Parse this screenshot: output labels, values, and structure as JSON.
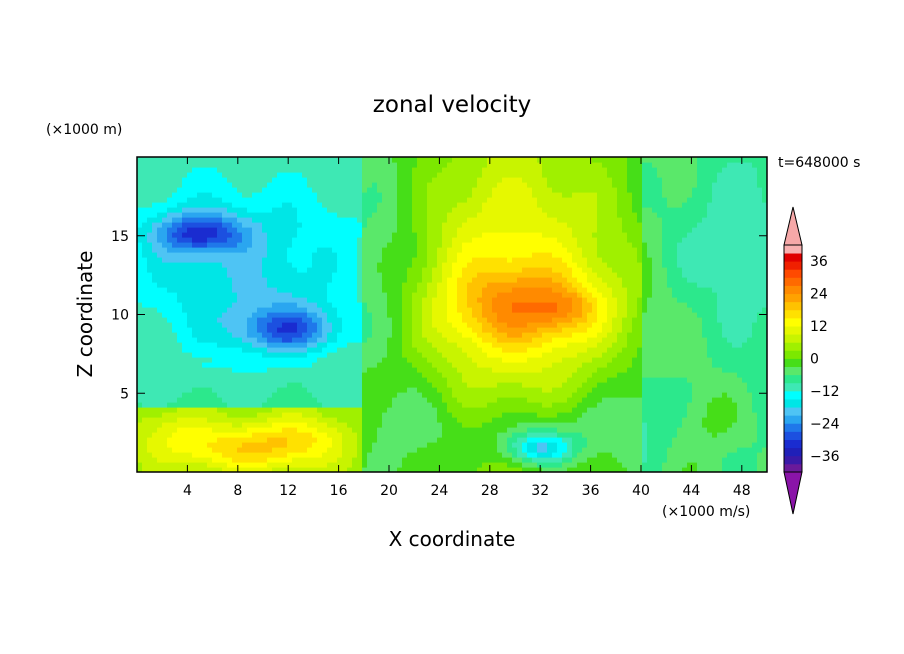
{
  "chart_data": {
    "type": "heatmap",
    "title": "zonal velocity",
    "time_label": "t=648000 s",
    "xlabel": "X coordinate",
    "ylabel": "Z coordinate",
    "x_unit": "(×1000 m/s)",
    "z_unit": "(×1000 m)",
    "xlim": [
      0,
      50
    ],
    "ylim": [
      0,
      20
    ],
    "x_ticks": [
      4,
      8,
      12,
      16,
      20,
      24,
      28,
      32,
      36,
      40,
      44,
      48
    ],
    "y_ticks": [
      5,
      10,
      15
    ],
    "colorbar": {
      "levels": [
        -42,
        -39,
        -36,
        -33,
        -30,
        -27,
        -24,
        -21,
        -18,
        -15,
        -12,
        -9,
        -6,
        -3,
        0,
        3,
        6,
        9,
        12,
        15,
        18,
        21,
        24,
        27,
        30,
        33,
        36,
        39,
        42
      ],
      "tick_labels": [
        36,
        24,
        12,
        0,
        -12,
        -24,
        -36
      ],
      "colors": [
        "#6a1a9a",
        "#3a1aa8",
        "#2020b8",
        "#1a2cd0",
        "#1c50e0",
        "#1f78ea",
        "#2aa6f0",
        "#4ec4f4",
        "#00e6e6",
        "#00ffff",
        "#3ee8b4",
        "#2ce88c",
        "#5ae86a",
        "#46de18",
        "#7ce800",
        "#a0f000",
        "#c8f400",
        "#e6f800",
        "#ffff00",
        "#ffe100",
        "#ffc200",
        "#ffa200",
        "#ff8a00",
        "#ff6a00",
        "#ff4a00",
        "#f02000",
        "#e00000",
        "#f8b0b0"
      ],
      "extend": "both",
      "under_color": "#8a14a8",
      "over_color": "#f6a8a8"
    },
    "features": [
      {
        "x": 31,
        "z": 10.5,
        "value": 13,
        "sx": 6,
        "sz": 2.6
      },
      {
        "x": 34,
        "z": 10.4,
        "value": 6,
        "sx": 2.2,
        "sz": 1.2
      },
      {
        "x": 31.5,
        "z": 10.5,
        "value": 8,
        "sx": 11,
        "sz": 5
      },
      {
        "x": 32,
        "z": 16.5,
        "value": 4,
        "sx": 9,
        "sz": 4
      },
      {
        "x": 26,
        "z": 13,
        "value": 3,
        "sx": 5,
        "sz": 6
      },
      {
        "x": 5,
        "z": 15.2,
        "value": -17,
        "sx": 3.5,
        "sz": 1.3
      },
      {
        "x": 5,
        "z": 13.5,
        "value": -8,
        "sx": 7,
        "sz": 6
      },
      {
        "x": 12,
        "z": 9,
        "value": -14,
        "sx": 4,
        "sz": 1.4
      },
      {
        "x": 12,
        "z": 10,
        "value": -6,
        "sx": 6,
        "sz": 3
      },
      {
        "x": 13,
        "z": 15,
        "value": -5,
        "sx": 5,
        "sz": 4
      },
      {
        "x": 20,
        "z": 14,
        "value": -4,
        "sx": 4,
        "sz": 7
      },
      {
        "x": 47,
        "z": 14,
        "value": -6,
        "sx": 5,
        "sz": 7
      },
      {
        "x": 43,
        "z": 13,
        "value": -3,
        "sx": 3,
        "sz": 5
      },
      {
        "x": 8,
        "z": 1.5,
        "value": 12,
        "sx": 6,
        "sz": 1.5
      },
      {
        "x": 13,
        "z": 2.2,
        "value": 8,
        "sx": 4,
        "sz": 1.6
      },
      {
        "x": 3,
        "z": 2.8,
        "value": 5,
        "sx": 3,
        "sz": 1.5
      },
      {
        "x": 32,
        "z": 1.5,
        "value": -15,
        "sx": 2.5,
        "sz": 1
      },
      {
        "x": 32,
        "z": 2.2,
        "value": -8,
        "sx": 6,
        "sz": 2.2
      },
      {
        "x": 22,
        "z": 3,
        "value": -4,
        "sx": 4,
        "sz": 3
      },
      {
        "x": 46,
        "z": 3.5,
        "value": 3,
        "sx": 3,
        "sz": 2
      },
      {
        "x": 40,
        "z": 4,
        "value": -4,
        "sx": 4,
        "sz": 3
      }
    ]
  }
}
